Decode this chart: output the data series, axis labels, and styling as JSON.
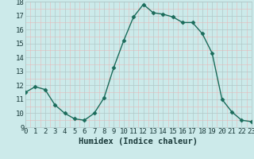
{
  "x": [
    0,
    1,
    2,
    3,
    4,
    5,
    6,
    7,
    8,
    9,
    10,
    11,
    12,
    13,
    14,
    15,
    16,
    17,
    18,
    19,
    20,
    21,
    22,
    23
  ],
  "y": [
    11.5,
    11.9,
    11.7,
    10.6,
    10.0,
    9.6,
    9.5,
    10.0,
    11.1,
    13.3,
    15.2,
    16.9,
    17.8,
    17.2,
    17.1,
    16.9,
    16.5,
    16.5,
    15.7,
    14.3,
    11.0,
    10.1,
    9.5,
    9.4
  ],
  "line_color": "#1a6b5a",
  "marker": "D",
  "marker_size": 2.5,
  "bg_color": "#cceaea",
  "grid_major_color": "#b0c8c8",
  "grid_minor_color": "#e8b8b8",
  "tick_label_color": "#1a3a3a",
  "xlabel": "Humidex (Indice chaleur)",
  "ylim": [
    9,
    18
  ],
  "xlim": [
    0,
    23
  ],
  "yticks": [
    9,
    10,
    11,
    12,
    13,
    14,
    15,
    16,
    17,
    18
  ],
  "xticks": [
    0,
    1,
    2,
    3,
    4,
    5,
    6,
    7,
    8,
    9,
    10,
    11,
    12,
    13,
    14,
    15,
    16,
    17,
    18,
    19,
    20,
    21,
    22,
    23
  ],
  "xlabel_fontsize": 7.5,
  "tick_fontsize": 6.5,
  "line_width": 1.0
}
